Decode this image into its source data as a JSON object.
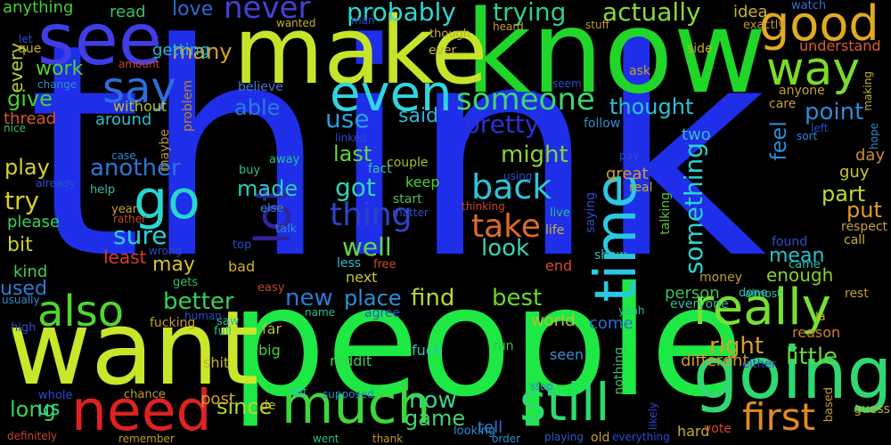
{
  "words": [
    {
      "text": "think",
      "color": "#1f2ee8"
    },
    {
      "text": "people",
      "color": "#1ee843"
    },
    {
      "text": "know",
      "color": "#1fd629"
    },
    {
      "text": "make",
      "color": "#c6e52a"
    },
    {
      "text": "want",
      "color": "#c9e62b"
    },
    {
      "text": "going",
      "color": "#2fd873"
    },
    {
      "text": "see",
      "color": "#3f3de6"
    },
    {
      "text": "really",
      "color": "#77e032"
    },
    {
      "text": "good",
      "color": "#e2aa1f"
    },
    {
      "text": "still",
      "color": "#2bdc6d"
    },
    {
      "text": "much",
      "color": "#3cd83b"
    },
    {
      "text": "need",
      "color": "#df2121"
    },
    {
      "text": "also",
      "color": "#4fd82b"
    },
    {
      "text": "go",
      "color": "#27d7cf"
    },
    {
      "text": "way",
      "color": "#7bdb2a"
    },
    {
      "text": "even",
      "color": "#2fd5df"
    },
    {
      "text": "say",
      "color": "#2e6ce0"
    },
    {
      "text": "time",
      "color": "#29c9e3"
    },
    {
      "text": "first",
      "color": "#e08a1f"
    },
    {
      "text": "lot",
      "color": "#31249a"
    },
    {
      "text": "thing",
      "color": "#2d43c6"
    },
    {
      "text": "someone",
      "color": "#3cd673"
    },
    {
      "text": "back",
      "color": "#2cc4dc"
    },
    {
      "text": "take",
      "color": "#dd6a2a"
    },
    {
      "text": "probably",
      "color": "#2bd9d4"
    },
    {
      "text": "trying",
      "color": "#2ecf86"
    },
    {
      "text": "actually",
      "color": "#8bd93a"
    },
    {
      "text": "never",
      "color": "#3f43d6"
    },
    {
      "text": "something",
      "color": "#2ad4cf"
    },
    {
      "text": "pretty",
      "color": "#2f2fd9"
    },
    {
      "text": "sure",
      "color": "#2dcfdf"
    },
    {
      "text": "well",
      "color": "#64d94b"
    },
    {
      "text": "got",
      "color": "#2ad9b1"
    },
    {
      "text": "use",
      "color": "#2b9ee0"
    },
    {
      "text": "right",
      "color": "#d7a123"
    },
    {
      "text": "better",
      "color": "#35d05a"
    },
    {
      "text": "new",
      "color": "#2b7ad6"
    },
    {
      "text": "look",
      "color": "#3cd2b4"
    },
    {
      "text": "find",
      "color": "#b5d934"
    },
    {
      "text": "best",
      "color": "#68d82c"
    },
    {
      "text": "another",
      "color": "#2b77d8"
    },
    {
      "text": "might",
      "color": "#88d33b"
    },
    {
      "text": "point",
      "color": "#2e8ad9"
    },
    {
      "text": "last",
      "color": "#66d63d"
    },
    {
      "text": "made",
      "color": "#2dcfb8"
    },
    {
      "text": "many",
      "color": "#d9a322"
    },
    {
      "text": "little",
      "color": "#6bd43b"
    },
    {
      "text": "now",
      "color": "#35d48e"
    },
    {
      "text": "place",
      "color": "#2b8fd5"
    },
    {
      "text": "game",
      "color": "#48d174"
    },
    {
      "text": "long",
      "color": "#3bd34a"
    },
    {
      "text": "since",
      "color": "#b0d52c"
    },
    {
      "text": "play",
      "color": "#d1d22e"
    },
    {
      "text": "try",
      "color": "#d4cc2e"
    },
    {
      "text": "able",
      "color": "#2b7bd8"
    },
    {
      "text": "thought",
      "color": "#2bc3d7"
    },
    {
      "text": "feel",
      "color": "#2b8bd8"
    },
    {
      "text": "part",
      "color": "#c4d92d"
    },
    {
      "text": "put",
      "color": "#e39b21"
    },
    {
      "text": "may",
      "color": "#d6c42b"
    },
    {
      "text": "give",
      "color": "#47d12e"
    },
    {
      "text": "work",
      "color": "#4fd42a"
    },
    {
      "text": "used",
      "color": "#2b7dd5"
    },
    {
      "text": "bit",
      "color": "#c8d32b"
    },
    {
      "text": "love",
      "color": "#2b6bd4"
    },
    {
      "text": "said",
      "color": "#2bb8d6"
    },
    {
      "text": "us",
      "color": "#2ad3a0"
    },
    {
      "text": "least",
      "color": "#d93a2b"
    },
    {
      "text": "mean",
      "color": "#2bc3c9"
    },
    {
      "text": "enough",
      "color": "#85d22b"
    },
    {
      "text": "different",
      "color": "#cf9a2b"
    },
    {
      "text": "post",
      "color": "#cfa12b"
    },
    {
      "text": "around",
      "color": "#2bbfd3"
    },
    {
      "text": "getting",
      "color": "#2bb8cc"
    },
    {
      "text": "anything",
      "color": "#41d12e"
    },
    {
      "text": "every",
      "color": "#c0d12b"
    },
    {
      "text": "thread",
      "color": "#d6572b"
    },
    {
      "text": "please",
      "color": "#39d15f"
    },
    {
      "text": "kind",
      "color": "#3fcf5a"
    },
    {
      "text": "fuck",
      "color": "#2bc6b8"
    },
    {
      "text": "reddit",
      "color": "#3ad04e"
    },
    {
      "text": "world",
      "color": "#b5c52b"
    },
    {
      "text": "come",
      "color": "#2b6fd4"
    },
    {
      "text": "great",
      "color": "#d09c2b"
    },
    {
      "text": "tell",
      "color": "#2b78d1"
    },
    {
      "text": "next",
      "color": "#c8c92b"
    },
    {
      "text": "end",
      "color": "#d94c2b"
    },
    {
      "text": "person",
      "color": "#3fbf5b"
    },
    {
      "text": "keep",
      "color": "#4fd02e"
    },
    {
      "text": "guy",
      "color": "#c9c92b"
    },
    {
      "text": "day",
      "color": "#d08b2b"
    },
    {
      "text": "reason",
      "color": "#cc812b"
    },
    {
      "text": "understand",
      "color": "#d95f2b"
    },
    {
      "text": "two",
      "color": "#3bb9c5"
    },
    {
      "text": "read",
      "color": "#3bbf6b"
    },
    {
      "text": "idea",
      "color": "#c5b72b"
    },
    {
      "text": "watch",
      "color": "#3b6fd4"
    },
    {
      "text": "exactly",
      "color": "#c59a2b"
    },
    {
      "text": "maybe",
      "color": "#b5912b"
    },
    {
      "text": "problem",
      "color": "#b9892b"
    },
    {
      "text": "without",
      "color": "#b5c22b"
    },
    {
      "text": "believe",
      "color": "#3b7bcf"
    },
    {
      "text": "fact",
      "color": "#3bbfa5"
    },
    {
      "text": "couple",
      "color": "#a8b82b"
    },
    {
      "text": "start",
      "color": "#4fbf5b"
    },
    {
      "text": "life",
      "color": "#cfb52b"
    },
    {
      "text": "saying",
      "color": "#2b4bcf"
    },
    {
      "text": "talking",
      "color": "#5fbf3b"
    },
    {
      "text": "show",
      "color": "#2bc5b5"
    },
    {
      "text": "seen",
      "color": "#3b8bcf"
    },
    {
      "text": "nothing",
      "color": "#3bbf5b"
    },
    {
      "text": "fucking",
      "color": "#c5a02b"
    },
    {
      "text": "far",
      "color": "#bdbf2b"
    },
    {
      "text": "big",
      "color": "#4bcf3b"
    },
    {
      "text": "shit",
      "color": "#c5b02b"
    },
    {
      "text": "bad",
      "color": "#cfb52b"
    },
    {
      "text": "free",
      "color": "#d5452b"
    },
    {
      "text": "less",
      "color": "#2bbfcf"
    },
    {
      "text": "agree",
      "color": "#2b5bcf"
    },
    {
      "text": "money",
      "color": "#c59a2b"
    },
    {
      "text": "everyone",
      "color": "#2bbf8f"
    },
    {
      "text": "almost",
      "color": "#2bbfa0"
    },
    {
      "text": "rest",
      "color": "#c59a2b"
    },
    {
      "text": "call",
      "color": "#c5b02b"
    },
    {
      "text": "respect",
      "color": "#c5a02b"
    },
    {
      "text": "found",
      "color": "#2b4bcf"
    },
    {
      "text": "came",
      "color": "#2bbfb0"
    },
    {
      "text": "done",
      "color": "#2bc5b5"
    },
    {
      "text": "yeah",
      "color": "#2bbf8f"
    },
    {
      "text": "la",
      "color": "#c5b02b"
    },
    {
      "text": "either",
      "color": "#2b4bcf"
    },
    {
      "text": "based",
      "color": "#c59a2b"
    },
    {
      "text": "guess",
      "color": "#c5b02b"
    },
    {
      "text": "hard",
      "color": "#c5b02b"
    },
    {
      "text": "likely",
      "color": "#2b4bcf"
    },
    {
      "text": "vote",
      "color": "#d5452b"
    },
    {
      "text": "order",
      "color": "#2b8bcf"
    },
    {
      "text": "playing",
      "color": "#2b5bcf"
    },
    {
      "text": "old",
      "color": "#c5a02b"
    },
    {
      "text": "everything",
      "color": "#2b4bcf"
    },
    {
      "text": "run",
      "color": "#3bbf5b"
    },
    {
      "text": "stop",
      "color": "#2b8bcf"
    },
    {
      "text": "looking",
      "color": "#2b8bcf"
    },
    {
      "text": "thank",
      "color": "#c59a2b"
    },
    {
      "text": "went",
      "color": "#2bbf8f"
    },
    {
      "text": "supposed",
      "color": "#2b8bcf"
    },
    {
      "text": "eat",
      "color": "#2bbfcf"
    },
    {
      "text": "de",
      "color": "#c5b02b"
    },
    {
      "text": "name",
      "color": "#2bbf8f"
    },
    {
      "text": "remember",
      "color": "#c59a2b"
    },
    {
      "text": "chance",
      "color": "#c59a2b"
    },
    {
      "text": "whole",
      "color": "#2b4bcf"
    },
    {
      "text": "definitely",
      "color": "#c5452b"
    },
    {
      "text": "high",
      "color": "#2b4bcf"
    },
    {
      "text": "usually",
      "color": "#2b8bcf"
    },
    {
      "text": "human",
      "color": "#2b4bcf"
    },
    {
      "text": "saw",
      "color": "#2bbfa0"
    },
    {
      "text": "full",
      "color": "#2bbf8f"
    },
    {
      "text": "gets",
      "color": "#3bbf5b"
    },
    {
      "text": "easy",
      "color": "#c5452b"
    },
    {
      "text": "top",
      "color": "#2b4bcf"
    },
    {
      "text": "talk",
      "color": "#2b8bcf"
    },
    {
      "text": "wrong",
      "color": "#2b4bcf"
    },
    {
      "text": "rather",
      "color": "#c5452b"
    },
    {
      "text": "year",
      "color": "#c5a02b"
    },
    {
      "text": "help",
      "color": "#2bbfa0"
    },
    {
      "text": "already",
      "color": "#2b4bcf"
    },
    {
      "text": "case",
      "color": "#2b8bcf"
    },
    {
      "text": "away",
      "color": "#2bbfa0"
    },
    {
      "text": "buy",
      "color": "#2bbf8f"
    },
    {
      "text": "else",
      "color": "#2b8bcf"
    },
    {
      "text": "matter",
      "color": "#2b4bcf"
    },
    {
      "text": "thinking",
      "color": "#c5452b"
    },
    {
      "text": "live",
      "color": "#2bbf8f"
    },
    {
      "text": "using",
      "color": "#2b4bcf"
    },
    {
      "text": "real",
      "color": "#c5b02b"
    },
    {
      "text": "pay",
      "color": "#2b4bcf"
    },
    {
      "text": "follow",
      "color": "#2b8bcf"
    },
    {
      "text": "linked",
      "color": "#2b4bcf"
    },
    {
      "text": "seem",
      "color": "#2b4bcf"
    },
    {
      "text": "ask",
      "color": "#c5a02b"
    },
    {
      "text": "side",
      "color": "#c5b02b"
    },
    {
      "text": "stuff",
      "color": "#c59a2b"
    },
    {
      "text": "heard",
      "color": "#c5a02b"
    },
    {
      "text": "wanted",
      "color": "#c5b02b"
    },
    {
      "text": "though",
      "color": "#c5b02b"
    },
    {
      "text": "ever",
      "color": "#c5b02b"
    },
    {
      "text": "man",
      "color": "#2b4bcf"
    },
    {
      "text": "que",
      "color": "#c5b02b"
    },
    {
      "text": "let",
      "color": "#2b4bcf"
    },
    {
      "text": "change",
      "color": "#2b8bcf"
    },
    {
      "text": "amount",
      "color": "#c5452b"
    },
    {
      "text": "nice",
      "color": "#3bbf5b"
    },
    {
      "text": "anyone",
      "color": "#c5a02b"
    },
    {
      "text": "care",
      "color": "#c5a02b"
    },
    {
      "text": "left",
      "color": "#2b4bcf"
    },
    {
      "text": "sort",
      "color": "#2b8bcf"
    },
    {
      "text": "making",
      "color": "#c5b02b"
    },
    {
      "text": "hope",
      "color": "#2b8bcf"
    }
  ]
}
